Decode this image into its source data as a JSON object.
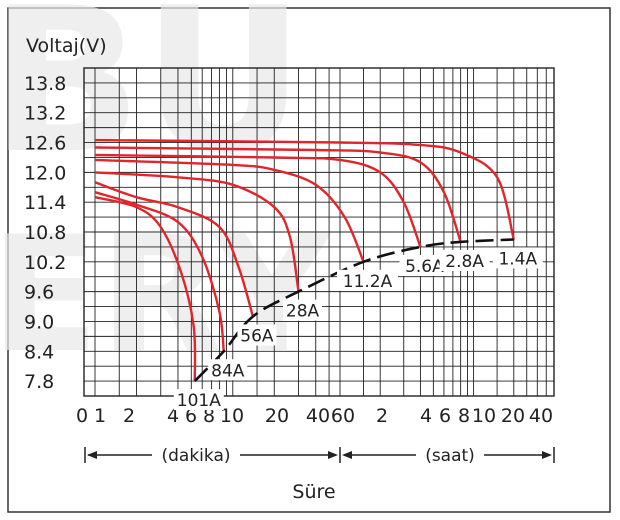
{
  "chart_data": {
    "type": "line",
    "title": "",
    "ylabel": "Voltaj(V)",
    "xlabel": "Süre",
    "y_ticks": [
      "13.8",
      "13.2",
      "12.6",
      "12.0",
      "11.4",
      "10.8",
      "10.2",
      "9.6",
      "9.0",
      "8.4",
      "7.8"
    ],
    "ylim": [
      7.5,
      14.1
    ],
    "x_scale": "log",
    "x_ticks_minutes": [
      "0",
      "1",
      "2",
      "4",
      "6",
      "8",
      "10",
      "20",
      "40"
    ],
    "x_ticks_hours": [
      "60",
      "2",
      "4",
      "6",
      "8",
      "10",
      "20",
      "40"
    ],
    "x_units": {
      "minutes": "(dakika)",
      "hours": "(saat)"
    },
    "grid": true,
    "colors": {
      "curve": "#e1252c",
      "endpoint_line": "#111111",
      "grid": "#222222"
    },
    "series": [
      {
        "name": "101A",
        "x_minutes": [
          1,
          2,
          3,
          4.2,
          5.2,
          5.3
        ],
        "y": [
          11.5,
          11.3,
          10.9,
          10.0,
          8.9,
          7.8
        ]
      },
      {
        "name": "84A",
        "x_minutes": [
          1,
          2,
          4,
          6,
          8,
          8.6
        ],
        "y": [
          11.6,
          11.35,
          11.0,
          10.3,
          9.2,
          8.4
        ]
      },
      {
        "name": "56A",
        "x_minutes": [
          1,
          2,
          4,
          8,
          11,
          14
        ],
        "y": [
          11.8,
          11.5,
          11.3,
          10.9,
          10.1,
          9.1
        ]
      },
      {
        "name": "28A",
        "x_minutes": [
          1,
          4,
          10,
          20,
          26,
          30
        ],
        "y": [
          12.0,
          11.9,
          11.75,
          11.3,
          10.7,
          9.6
        ]
      },
      {
        "name": "11.2A",
        "x_minutes": [
          1,
          10,
          20,
          40,
          65,
          90
        ],
        "y": [
          12.25,
          12.15,
          12.05,
          11.75,
          11.1,
          10.2
        ]
      },
      {
        "name": "5.6A",
        "x_minutes": [
          1,
          20,
          60,
          120,
          180,
          240
        ],
        "y": [
          12.35,
          12.3,
          12.25,
          12.0,
          11.4,
          10.5
        ]
      },
      {
        "name": "2.8A",
        "x_minutes": [
          1,
          40,
          120,
          240,
          360,
          480
        ],
        "y": [
          12.5,
          12.45,
          12.4,
          12.2,
          11.6,
          10.6
        ]
      },
      {
        "name": "1.4A",
        "x_minutes": [
          1,
          60,
          240,
          480,
          900,
          1200
        ],
        "y": [
          12.65,
          12.6,
          12.55,
          12.4,
          11.9,
          10.65
        ]
      }
    ],
    "endpoint_line": {
      "x_minutes": [
        5.3,
        8.6,
        14,
        30,
        90,
        240,
        480,
        1200
      ],
      "y": [
        7.8,
        8.4,
        9.1,
        9.6,
        10.2,
        10.5,
        10.6,
        10.65
      ]
    }
  },
  "watermark": {
    "line1": "BU",
    "line2": "ERY"
  }
}
